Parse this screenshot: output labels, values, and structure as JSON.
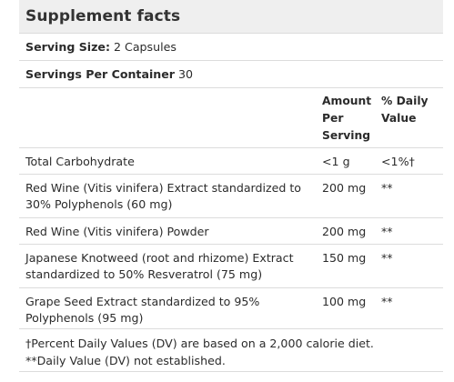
{
  "title": "Supplement facts",
  "serving_size": {
    "label": "Serving Size:",
    "value": "2 Capsules"
  },
  "servings_per_container": {
    "label": "Servings Per Container",
    "value": "30"
  },
  "columns": {
    "amount": [
      "Amount",
      "Per",
      "Serving"
    ],
    "daily_value": [
      "% Daily",
      "Value"
    ]
  },
  "ingredients": [
    {
      "name": "Total Carbohydrate",
      "amount": "<1 g",
      "dv": "<1%†"
    },
    {
      "name": "Red Wine (Vitis vinifera) Extract standardized to 30% Polyphenols (60 mg)",
      "amount": "200 mg",
      "dv": "**"
    },
    {
      "name": "Red Wine (Vitis vinifera) Powder",
      "amount": "200 mg",
      "dv": "**"
    },
    {
      "name": "Japanese Knotweed (root and rhizome) Extract standardized to 50% Resveratrol (75 mg)",
      "amount": "150 mg",
      "dv": "**"
    },
    {
      "name": "Grape Seed Extract standardized to 95% Polyphenols (95 mg)",
      "amount": "100 mg",
      "dv": "**"
    }
  ],
  "footnotes": [
    "†Percent Daily Values (DV) are based on a 2,000 calorie diet.",
    "**Daily Value (DV) not established."
  ]
}
